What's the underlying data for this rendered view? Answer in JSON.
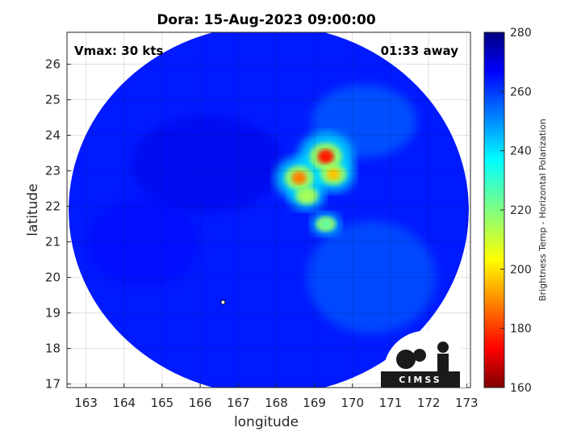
{
  "chart_data": {
    "type": "heatmap",
    "title": "Dora: 15-Aug-2023 09:00:00",
    "xlabel": "longitude",
    "ylabel": "latitude",
    "xlim": [
      162.5,
      173.1
    ],
    "ylim": [
      16.9,
      26.9
    ],
    "x_ticks": [
      "163",
      "164",
      "165",
      "166",
      "167",
      "168",
      "169",
      "170",
      "171",
      "172",
      "173"
    ],
    "y_ticks": [
      "17",
      "18",
      "19",
      "20",
      "21",
      "22",
      "23",
      "24",
      "25",
      "26"
    ],
    "grid": true,
    "colorbar": {
      "label": "Brightness Temp - Horizontal Polarization",
      "range": [
        160,
        280
      ],
      "ticks": [
        "280",
        "260",
        "240",
        "220",
        "200",
        "180",
        "160"
      ],
      "colormap": "jet"
    },
    "swath": {
      "center": [
        167.8,
        21.9
      ],
      "background_value": 262
    },
    "features": [
      {
        "lon": 169.3,
        "lat": 23.4,
        "value": 178
      },
      {
        "lon": 168.6,
        "lat": 22.8,
        "value": 190
      },
      {
        "lon": 169.5,
        "lat": 22.9,
        "value": 198
      },
      {
        "lon": 168.8,
        "lat": 22.3,
        "value": 215
      },
      {
        "lon": 169.3,
        "lat": 21.5,
        "value": 225
      }
    ],
    "storm_center": {
      "lon": 166.6,
      "lat": 19.3
    },
    "annotations": {
      "vmax": "Vmax: 30 kts",
      "time_away": "01:33 away"
    }
  },
  "logo": {
    "text": "CIMSS"
  }
}
